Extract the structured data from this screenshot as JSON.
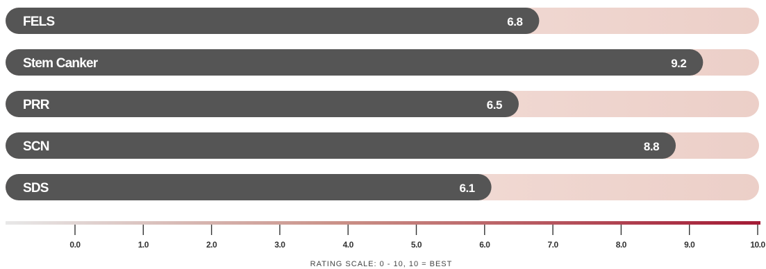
{
  "chart_data": {
    "type": "bar",
    "orientation": "horizontal",
    "categories": [
      "FELS",
      "Stem Canker",
      "PRR",
      "SCN",
      "SDS"
    ],
    "values": [
      6.8,
      9.2,
      6.5,
      8.8,
      6.1
    ],
    "value_labels": [
      "6.8",
      "9.2",
      "6.5",
      "8.8",
      "6.1"
    ],
    "xlim": [
      -1,
      10
    ],
    "ticks": [
      "0.0",
      "1.0",
      "2.0",
      "3.0",
      "4.0",
      "5.0",
      "6.0",
      "7.0",
      "8.0",
      "9.0",
      "10.0"
    ],
    "tick_values": [
      0,
      1,
      2,
      3,
      4,
      5,
      6,
      7,
      8,
      9,
      10
    ],
    "xlabel": "RATING SCALE: 0 - 10, 10 = BEST",
    "grid": false,
    "colors": {
      "bar": "#555555",
      "track_start": "#f7e8e3",
      "track_end": "#eccfc8",
      "scale_start": "#e8e8e8",
      "scale_mid": "#c98f86",
      "scale_end": "#a31a35"
    }
  }
}
